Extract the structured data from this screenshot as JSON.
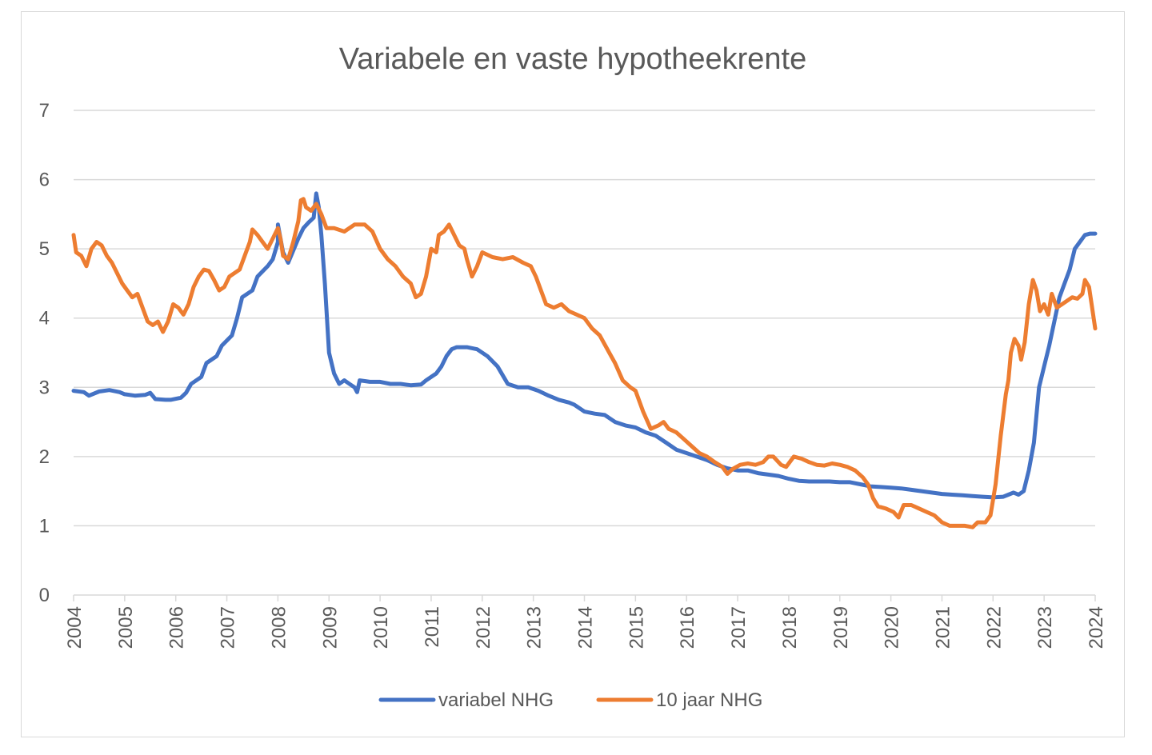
{
  "chart_data": {
    "type": "line",
    "title": "Variabele en vaste hypotheekrente",
    "xlabel": "",
    "ylabel": "",
    "ylim": [
      0,
      7
    ],
    "xlim": [
      2004,
      2024
    ],
    "yticks": [
      "0",
      "1",
      "2",
      "3",
      "4",
      "5",
      "6",
      "7"
    ],
    "xticks": [
      "2004",
      "2005",
      "2006",
      "2007",
      "2008",
      "2009",
      "2010",
      "2011",
      "2012",
      "2013",
      "2014",
      "2015",
      "2016",
      "2017",
      "2018",
      "2019",
      "2020",
      "2021",
      "2022",
      "2023",
      "2024"
    ],
    "grid": true,
    "legend_position": "bottom",
    "series": [
      {
        "name": "variabel NHG",
        "color": "#4472C4",
        "points": [
          [
            2004.0,
            2.95
          ],
          [
            2004.2,
            2.93
          ],
          [
            2004.3,
            2.88
          ],
          [
            2004.5,
            2.94
          ],
          [
            2004.7,
            2.96
          ],
          [
            2004.9,
            2.93
          ],
          [
            2005.0,
            2.9
          ],
          [
            2005.2,
            2.88
          ],
          [
            2005.4,
            2.89
          ],
          [
            2005.5,
            2.92
          ],
          [
            2005.6,
            2.83
          ],
          [
            2005.8,
            2.82
          ],
          [
            2005.9,
            2.82
          ],
          [
            2006.1,
            2.85
          ],
          [
            2006.2,
            2.92
          ],
          [
            2006.3,
            3.05
          ],
          [
            2006.5,
            3.15
          ],
          [
            2006.6,
            3.35
          ],
          [
            2006.8,
            3.45
          ],
          [
            2006.9,
            3.6
          ],
          [
            2007.1,
            3.75
          ],
          [
            2007.2,
            4.0
          ],
          [
            2007.3,
            4.3
          ],
          [
            2007.5,
            4.4
          ],
          [
            2007.6,
            4.6
          ],
          [
            2007.8,
            4.75
          ],
          [
            2007.9,
            4.85
          ],
          [
            2008.0,
            5.1
          ],
          [
            2008.0,
            5.35
          ],
          [
            2008.1,
            4.95
          ],
          [
            2008.2,
            4.8
          ],
          [
            2008.4,
            5.15
          ],
          [
            2008.5,
            5.3
          ],
          [
            2008.6,
            5.38
          ],
          [
            2008.7,
            5.45
          ],
          [
            2008.75,
            5.8
          ],
          [
            2008.8,
            5.6
          ],
          [
            2008.85,
            5.2
          ],
          [
            2008.92,
            4.5
          ],
          [
            2009.0,
            3.5
          ],
          [
            2009.1,
            3.2
          ],
          [
            2009.2,
            3.05
          ],
          [
            2009.3,
            3.1
          ],
          [
            2009.4,
            3.05
          ],
          [
            2009.5,
            3.0
          ],
          [
            2009.55,
            2.93
          ],
          [
            2009.6,
            3.1
          ],
          [
            2009.8,
            3.08
          ],
          [
            2010.0,
            3.08
          ],
          [
            2010.2,
            3.05
          ],
          [
            2010.4,
            3.05
          ],
          [
            2010.6,
            3.03
          ],
          [
            2010.8,
            3.04
          ],
          [
            2010.9,
            3.1
          ],
          [
            2011.1,
            3.2
          ],
          [
            2011.2,
            3.3
          ],
          [
            2011.3,
            3.45
          ],
          [
            2011.4,
            3.55
          ],
          [
            2011.5,
            3.58
          ],
          [
            2011.7,
            3.58
          ],
          [
            2011.9,
            3.55
          ],
          [
            2012.1,
            3.45
          ],
          [
            2012.3,
            3.3
          ],
          [
            2012.5,
            3.05
          ],
          [
            2012.7,
            3.0
          ],
          [
            2012.9,
            3.0
          ],
          [
            2013.1,
            2.95
          ],
          [
            2013.3,
            2.88
          ],
          [
            2013.5,
            2.82
          ],
          [
            2013.7,
            2.78
          ],
          [
            2013.8,
            2.75
          ],
          [
            2014.0,
            2.65
          ],
          [
            2014.2,
            2.62
          ],
          [
            2014.4,
            2.6
          ],
          [
            2014.6,
            2.5
          ],
          [
            2014.8,
            2.45
          ],
          [
            2015.0,
            2.42
          ],
          [
            2015.2,
            2.35
          ],
          [
            2015.4,
            2.3
          ],
          [
            2015.6,
            2.2
          ],
          [
            2015.8,
            2.1
          ],
          [
            2016.0,
            2.05
          ],
          [
            2016.2,
            2.0
          ],
          [
            2016.4,
            1.95
          ],
          [
            2016.6,
            1.88
          ],
          [
            2016.8,
            1.83
          ],
          [
            2017.0,
            1.8
          ],
          [
            2017.2,
            1.8
          ],
          [
            2017.4,
            1.76
          ],
          [
            2017.6,
            1.74
          ],
          [
            2017.8,
            1.72
          ],
          [
            2018.0,
            1.68
          ],
          [
            2018.2,
            1.65
          ],
          [
            2018.4,
            1.64
          ],
          [
            2018.6,
            1.64
          ],
          [
            2018.8,
            1.64
          ],
          [
            2019.0,
            1.63
          ],
          [
            2019.2,
            1.63
          ],
          [
            2019.4,
            1.6
          ],
          [
            2019.6,
            1.57
          ],
          [
            2019.8,
            1.56
          ],
          [
            2020.0,
            1.55
          ],
          [
            2020.2,
            1.54
          ],
          [
            2020.4,
            1.52
          ],
          [
            2020.6,
            1.5
          ],
          [
            2020.8,
            1.48
          ],
          [
            2021.0,
            1.46
          ],
          [
            2021.2,
            1.45
          ],
          [
            2021.4,
            1.44
          ],
          [
            2021.6,
            1.43
          ],
          [
            2021.8,
            1.42
          ],
          [
            2022.0,
            1.41
          ],
          [
            2022.2,
            1.42
          ],
          [
            2022.3,
            1.45
          ],
          [
            2022.4,
            1.48
          ],
          [
            2022.5,
            1.45
          ],
          [
            2022.6,
            1.5
          ],
          [
            2022.7,
            1.8
          ],
          [
            2022.8,
            2.2
          ],
          [
            2022.85,
            2.6
          ],
          [
            2022.9,
            3.0
          ],
          [
            2023.0,
            3.3
          ],
          [
            2023.1,
            3.6
          ],
          [
            2023.2,
            3.95
          ],
          [
            2023.3,
            4.3
          ],
          [
            2023.4,
            4.5
          ],
          [
            2023.5,
            4.7
          ],
          [
            2023.6,
            5.0
          ],
          [
            2023.7,
            5.1
          ],
          [
            2023.8,
            5.2
          ],
          [
            2023.9,
            5.22
          ],
          [
            2024.0,
            5.22
          ]
        ]
      },
      {
        "name": "10 jaar NHG",
        "color": "#ED7D31",
        "points": [
          [
            2004.0,
            5.2
          ],
          [
            2004.05,
            4.95
          ],
          [
            2004.15,
            4.9
          ],
          [
            2004.25,
            4.75
          ],
          [
            2004.35,
            5.0
          ],
          [
            2004.45,
            5.1
          ],
          [
            2004.55,
            5.05
          ],
          [
            2004.65,
            4.9
          ],
          [
            2004.75,
            4.8
          ],
          [
            2004.85,
            4.65
          ],
          [
            2004.95,
            4.5
          ],
          [
            2005.05,
            4.4
          ],
          [
            2005.15,
            4.3
          ],
          [
            2005.25,
            4.35
          ],
          [
            2005.35,
            4.15
          ],
          [
            2005.45,
            3.95
          ],
          [
            2005.55,
            3.9
          ],
          [
            2005.65,
            3.95
          ],
          [
            2005.75,
            3.8
          ],
          [
            2005.85,
            3.95
          ],
          [
            2005.95,
            4.2
          ],
          [
            2006.05,
            4.15
          ],
          [
            2006.15,
            4.05
          ],
          [
            2006.25,
            4.2
          ],
          [
            2006.35,
            4.45
          ],
          [
            2006.45,
            4.6
          ],
          [
            2006.55,
            4.7
          ],
          [
            2006.65,
            4.68
          ],
          [
            2006.75,
            4.55
          ],
          [
            2006.85,
            4.4
          ],
          [
            2006.95,
            4.45
          ],
          [
            2007.05,
            4.6
          ],
          [
            2007.15,
            4.65
          ],
          [
            2007.25,
            4.7
          ],
          [
            2007.35,
            4.9
          ],
          [
            2007.45,
            5.1
          ],
          [
            2007.5,
            5.28
          ],
          [
            2007.6,
            5.2
          ],
          [
            2007.7,
            5.1
          ],
          [
            2007.8,
            5.0
          ],
          [
            2007.9,
            5.15
          ],
          [
            2008.0,
            5.3
          ],
          [
            2008.05,
            5.15
          ],
          [
            2008.1,
            4.9
          ],
          [
            2008.2,
            4.85
          ],
          [
            2008.3,
            5.1
          ],
          [
            2008.4,
            5.4
          ],
          [
            2008.45,
            5.7
          ],
          [
            2008.5,
            5.72
          ],
          [
            2008.55,
            5.6
          ],
          [
            2008.65,
            5.55
          ],
          [
            2008.75,
            5.65
          ],
          [
            2008.85,
            5.5
          ],
          [
            2008.95,
            5.3
          ],
          [
            2009.1,
            5.3
          ],
          [
            2009.3,
            5.25
          ],
          [
            2009.5,
            5.35
          ],
          [
            2009.7,
            5.35
          ],
          [
            2009.85,
            5.25
          ],
          [
            2010.0,
            5.0
          ],
          [
            2010.15,
            4.85
          ],
          [
            2010.3,
            4.75
          ],
          [
            2010.45,
            4.6
          ],
          [
            2010.6,
            4.5
          ],
          [
            2010.7,
            4.3
          ],
          [
            2010.8,
            4.35
          ],
          [
            2010.9,
            4.6
          ],
          [
            2011.0,
            5.0
          ],
          [
            2011.1,
            4.95
          ],
          [
            2011.15,
            5.2
          ],
          [
            2011.25,
            5.25
          ],
          [
            2011.35,
            5.35
          ],
          [
            2011.45,
            5.2
          ],
          [
            2011.55,
            5.05
          ],
          [
            2011.65,
            5.0
          ],
          [
            2011.7,
            4.85
          ],
          [
            2011.8,
            4.6
          ],
          [
            2011.9,
            4.75
          ],
          [
            2012.0,
            4.95
          ],
          [
            2012.2,
            4.88
          ],
          [
            2012.4,
            4.85
          ],
          [
            2012.6,
            4.88
          ],
          [
            2012.8,
            4.8
          ],
          [
            2012.95,
            4.75
          ],
          [
            2013.05,
            4.6
          ],
          [
            2013.15,
            4.4
          ],
          [
            2013.25,
            4.2
          ],
          [
            2013.4,
            4.15
          ],
          [
            2013.55,
            4.2
          ],
          [
            2013.7,
            4.1
          ],
          [
            2013.85,
            4.05
          ],
          [
            2014.0,
            4.0
          ],
          [
            2014.15,
            3.85
          ],
          [
            2014.3,
            3.75
          ],
          [
            2014.45,
            3.55
          ],
          [
            2014.6,
            3.35
          ],
          [
            2014.75,
            3.1
          ],
          [
            2014.9,
            3.0
          ],
          [
            2015.0,
            2.95
          ],
          [
            2015.15,
            2.65
          ],
          [
            2015.3,
            2.4
          ],
          [
            2015.45,
            2.45
          ],
          [
            2015.55,
            2.5
          ],
          [
            2015.65,
            2.4
          ],
          [
            2015.8,
            2.35
          ],
          [
            2015.95,
            2.25
          ],
          [
            2016.1,
            2.15
          ],
          [
            2016.25,
            2.05
          ],
          [
            2016.4,
            2.0
          ],
          [
            2016.55,
            1.92
          ],
          [
            2016.7,
            1.85
          ],
          [
            2016.8,
            1.75
          ],
          [
            2016.9,
            1.82
          ],
          [
            2017.05,
            1.88
          ],
          [
            2017.2,
            1.9
          ],
          [
            2017.35,
            1.88
          ],
          [
            2017.5,
            1.92
          ],
          [
            2017.6,
            2.0
          ],
          [
            2017.7,
            2.0
          ],
          [
            2017.85,
            1.88
          ],
          [
            2017.95,
            1.85
          ],
          [
            2018.1,
            2.0
          ],
          [
            2018.25,
            1.97
          ],
          [
            2018.4,
            1.92
          ],
          [
            2018.55,
            1.88
          ],
          [
            2018.7,
            1.87
          ],
          [
            2018.85,
            1.9
          ],
          [
            2019.0,
            1.88
          ],
          [
            2019.15,
            1.85
          ],
          [
            2019.3,
            1.8
          ],
          [
            2019.45,
            1.7
          ],
          [
            2019.55,
            1.6
          ],
          [
            2019.65,
            1.4
          ],
          [
            2019.75,
            1.28
          ],
          [
            2019.9,
            1.25
          ],
          [
            2020.05,
            1.2
          ],
          [
            2020.15,
            1.12
          ],
          [
            2020.25,
            1.3
          ],
          [
            2020.4,
            1.3
          ],
          [
            2020.55,
            1.25
          ],
          [
            2020.7,
            1.2
          ],
          [
            2020.85,
            1.15
          ],
          [
            2021.0,
            1.05
          ],
          [
            2021.15,
            1.0
          ],
          [
            2021.3,
            1.0
          ],
          [
            2021.45,
            1.0
          ],
          [
            2021.6,
            0.98
          ],
          [
            2021.7,
            1.05
          ],
          [
            2021.85,
            1.05
          ],
          [
            2021.95,
            1.15
          ],
          [
            2022.05,
            1.6
          ],
          [
            2022.15,
            2.3
          ],
          [
            2022.25,
            2.9
          ],
          [
            2022.3,
            3.1
          ],
          [
            2022.35,
            3.5
          ],
          [
            2022.42,
            3.7
          ],
          [
            2022.5,
            3.6
          ],
          [
            2022.55,
            3.4
          ],
          [
            2022.62,
            3.65
          ],
          [
            2022.7,
            4.2
          ],
          [
            2022.78,
            4.55
          ],
          [
            2022.85,
            4.4
          ],
          [
            2022.92,
            4.1
          ],
          [
            2023.0,
            4.2
          ],
          [
            2023.08,
            4.05
          ],
          [
            2023.15,
            4.35
          ],
          [
            2023.25,
            4.15
          ],
          [
            2023.35,
            4.2
          ],
          [
            2023.45,
            4.25
          ],
          [
            2023.55,
            4.3
          ],
          [
            2023.65,
            4.28
          ],
          [
            2023.75,
            4.35
          ],
          [
            2023.8,
            4.55
          ],
          [
            2023.88,
            4.45
          ],
          [
            2023.95,
            4.1
          ],
          [
            2024.0,
            3.85
          ]
        ]
      }
    ]
  }
}
